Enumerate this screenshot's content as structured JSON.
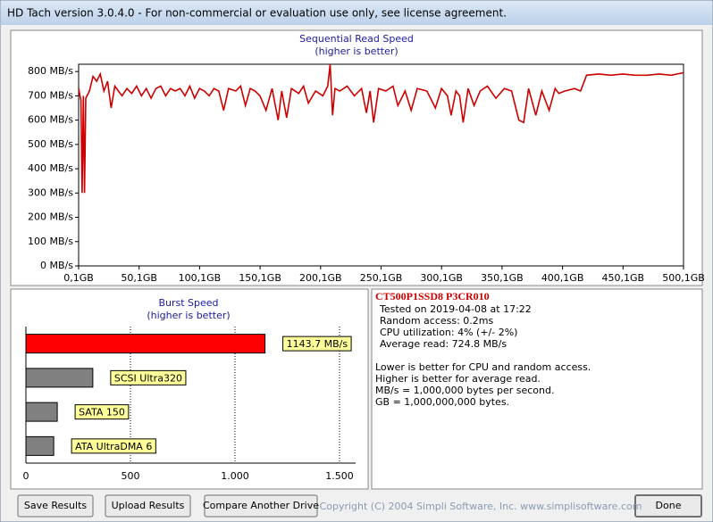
{
  "window": {
    "title": "HD Tach version 3.0.4.0  - For non-commercial or evaluation use only, see license agreement."
  },
  "chart_data": [
    {
      "type": "line",
      "title": "Sequential Read Speed",
      "subtitle": "(higher is better)",
      "color": "#cc0000",
      "x": [
        0.1,
        2,
        3,
        4,
        5,
        6,
        9,
        12,
        15,
        18,
        21,
        24,
        27,
        30,
        33,
        36,
        40,
        44,
        48,
        52,
        56,
        60,
        64,
        68,
        72,
        76,
        80,
        84,
        88,
        92,
        96,
        100,
        104,
        108,
        112,
        116,
        120,
        124,
        130,
        134,
        138,
        142,
        146,
        150,
        155,
        160,
        165,
        168,
        172,
        176,
        182,
        186,
        190,
        196,
        202,
        206,
        208,
        210,
        212,
        216,
        222,
        228,
        234,
        238,
        241,
        244,
        248,
        254,
        260,
        264,
        270,
        275,
        280,
        288,
        295,
        300,
        305,
        308,
        312,
        315,
        318,
        322,
        327,
        332,
        338,
        345,
        352,
        358,
        364,
        368,
        372,
        378,
        383,
        389,
        394,
        397,
        402,
        410,
        415,
        420,
        430,
        440,
        450,
        460,
        470,
        480,
        490,
        495,
        500.1
      ],
      "values": [
        730,
        680,
        300,
        700,
        300,
        690,
        720,
        780,
        760,
        790,
        720,
        760,
        650,
        740,
        720,
        700,
        730,
        710,
        740,
        700,
        730,
        690,
        730,
        740,
        700,
        730,
        720,
        730,
        700,
        740,
        690,
        730,
        720,
        700,
        730,
        720,
        640,
        730,
        720,
        740,
        660,
        730,
        720,
        700,
        640,
        730,
        600,
        720,
        610,
        730,
        710,
        740,
        670,
        720,
        700,
        740,
        830,
        620,
        730,
        720,
        740,
        700,
        730,
        630,
        720,
        590,
        730,
        720,
        740,
        660,
        720,
        640,
        730,
        720,
        650,
        730,
        700,
        620,
        720,
        700,
        590,
        730,
        660,
        720,
        740,
        690,
        730,
        720,
        600,
        590,
        730,
        620,
        720,
        640,
        730,
        710,
        720,
        730,
        720,
        785,
        790,
        785,
        790,
        785,
        785,
        790,
        785,
        790,
        795
      ],
      "xlim": [
        0.1,
        500.1
      ],
      "ylim": [
        0,
        830
      ],
      "xticks": [
        {
          "value": 0.1,
          "label": "0,1GB"
        },
        {
          "value": 50.1,
          "label": "50,1GB"
        },
        {
          "value": 100.1,
          "label": "100,1GB"
        },
        {
          "value": 150.1,
          "label": "150,1GB"
        },
        {
          "value": 200.1,
          "label": "200,1GB"
        },
        {
          "value": 250.1,
          "label": "250,1GB"
        },
        {
          "value": 300.1,
          "label": "300,1GB"
        },
        {
          "value": 350.1,
          "label": "350,1GB"
        },
        {
          "value": 400.1,
          "label": "400,1GB"
        },
        {
          "value": 450.1,
          "label": "450,1GB"
        },
        {
          "value": 500.1,
          "label": "500,1GB"
        }
      ],
      "yticks": [
        {
          "value": 0,
          "label": "0 MB/s"
        },
        {
          "value": 100,
          "label": "100 MB/s"
        },
        {
          "value": 200,
          "label": "200 MB/s"
        },
        {
          "value": 300,
          "label": "300 MB/s"
        },
        {
          "value": 400,
          "label": "400 MB/s"
        },
        {
          "value": 500,
          "label": "500 MB/s"
        },
        {
          "value": 600,
          "label": "600 MB/s"
        },
        {
          "value": 700,
          "label": "700 MB/s"
        },
        {
          "value": 800,
          "label": "800 MB/s"
        }
      ]
    },
    {
      "type": "hbar",
      "title": "Burst Speed",
      "subtitle": "(higher is better)",
      "categories": [
        null,
        "SCSI Ultra320",
        "SATA 150",
        "ATA UltraDMA 6"
      ],
      "values": [
        1143.7,
        320,
        150,
        133
      ],
      "value_labels": [
        "1143.7 MB/s",
        null,
        null,
        null
      ],
      "colors": [
        "#ff0000",
        "#808080",
        "#808080",
        "#808080"
      ],
      "xlim": [
        0,
        1577
      ],
      "xticks": [
        0,
        500,
        {
          "value": 1000,
          "label": "1.000"
        },
        {
          "value": 1500,
          "label": "1.500"
        }
      ],
      "grid": true
    }
  ],
  "info": {
    "drive": "CT500P1SSD8 P3CR010",
    "stats": [
      "Tested on 2019-04-08 at 17:22",
      "Random access: 0.2ms",
      "CPU utilization: 4% (+/- 2%)",
      "Average read: 724.8 MB/s"
    ],
    "notes": [
      "Lower is better for CPU and random access.",
      "Higher is better for average read.",
      "MB/s = 1,000,000 bytes per second.",
      "GB = 1,000,000,000 bytes."
    ]
  },
  "buttons": [
    "Save Results",
    "Upload Results",
    "Compare Another Drive",
    "Done"
  ],
  "copyright": "Copyright (C) 2004 Simpli Software, Inc. www.simplisoftware.com"
}
